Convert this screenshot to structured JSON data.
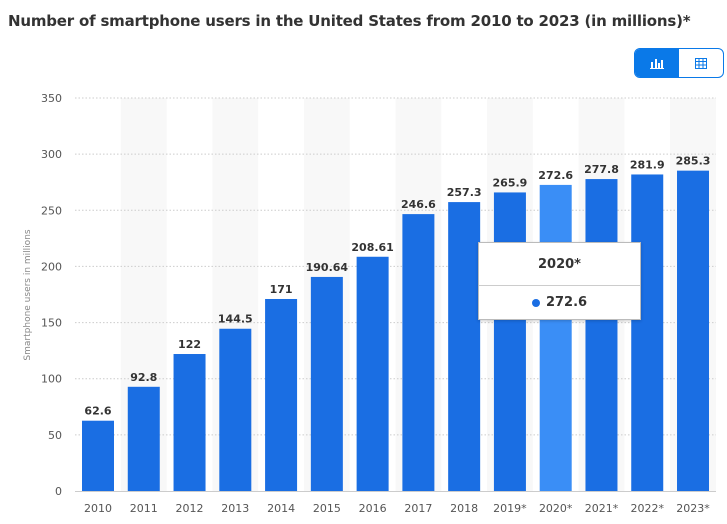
{
  "title": "Number of smartphone users in the United States from 2010 to 2023 (in millions)*",
  "toggle": {
    "chart_icon": "bar-chart-icon",
    "table_icon": "table-icon",
    "active": "chart"
  },
  "colors": {
    "bar": "#1a6ee3",
    "bar_highlight": "#3a8ef6",
    "accent": "#0a79e8"
  },
  "tooltip": {
    "category": "2020*",
    "value": "272.6"
  },
  "chart_data": {
    "type": "bar",
    "title": "Number of smartphone users in the United States from 2010 to 2023 (in millions)*",
    "xlabel": "",
    "ylabel": "Smartphone users in millions",
    "ylim": [
      0,
      350
    ],
    "yticks": [
      0,
      50,
      100,
      150,
      200,
      250,
      300,
      350
    ],
    "grid": true,
    "categories": [
      "2010",
      "2011",
      "2012",
      "2013",
      "2014",
      "2015",
      "2016",
      "2017",
      "2018",
      "2019*",
      "2020*",
      "2021*",
      "2022*",
      "2023*"
    ],
    "values": [
      62.6,
      92.8,
      122,
      144.5,
      171,
      190.64,
      208.61,
      246.6,
      257.3,
      265.9,
      272.6,
      277.8,
      281.9,
      285.3
    ],
    "highlighted": "2020*"
  }
}
